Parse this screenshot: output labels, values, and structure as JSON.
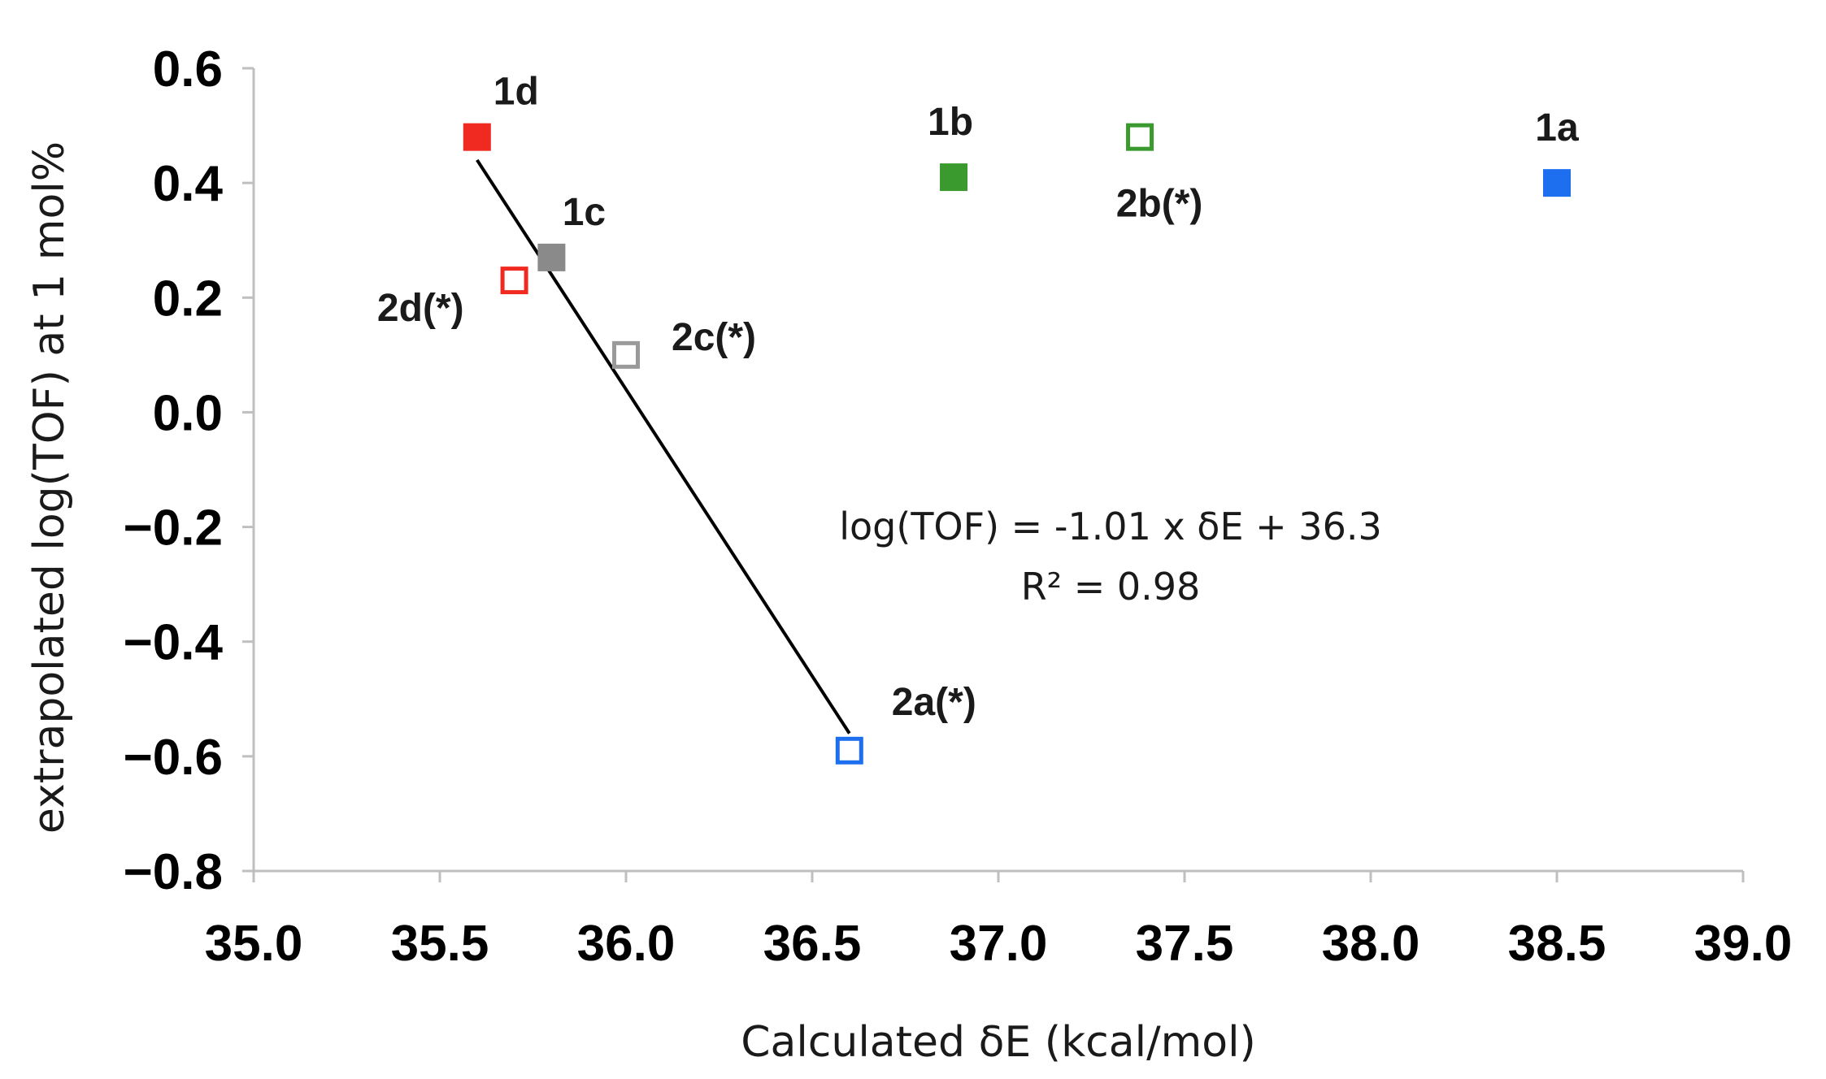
{
  "chart_data": {
    "type": "scatter",
    "xlabel": "Calculated δE (kcal/mol)",
    "ylabel": "extrapolated log(TOF) at 1 mol%",
    "xlim": [
      35.0,
      39.0
    ],
    "ylim": [
      -0.8,
      0.6
    ],
    "x_ticks": [
      "35.0",
      "35.5",
      "36.0",
      "36.5",
      "37.0",
      "37.5",
      "38.0",
      "38.5",
      "39.0"
    ],
    "y_ticks": [
      "0.6",
      "0.4",
      "0.2",
      "0.0",
      "−0.2",
      "−0.4",
      "−0.6",
      "−0.8"
    ],
    "grid": false,
    "points": [
      {
        "label": "1a",
        "x": 38.5,
        "y": 0.4,
        "color": "#1e6ff0",
        "filled": true
      },
      {
        "label": "1b",
        "x": 36.88,
        "y": 0.41,
        "color": "#3a9a2e",
        "filled": true
      },
      {
        "label": "1c",
        "x": 35.8,
        "y": 0.27,
        "color": "#8a8a8a",
        "filled": true
      },
      {
        "label": "1d",
        "x": 35.6,
        "y": 0.48,
        "color": "#f02a20",
        "filled": true
      },
      {
        "label": "2a(*)",
        "x": 36.6,
        "y": -0.59,
        "color": "#1e6ff0",
        "filled": false
      },
      {
        "label": "2b(*)",
        "x": 37.38,
        "y": 0.48,
        "color": "#3a9a2e",
        "filled": false
      },
      {
        "label": "2c(*)",
        "x": 36.0,
        "y": 0.1,
        "color": "#9a9a9a",
        "filled": false
      },
      {
        "label": "2d(*)",
        "x": 35.7,
        "y": 0.23,
        "color": "#f02a20",
        "filled": false
      }
    ],
    "trendline": {
      "x": [
        35.6,
        36.6
      ],
      "y": [
        0.44,
        -0.56
      ],
      "color": "#000000"
    },
    "annotation": {
      "equation": "log(TOF) = -1.01 x δE + 36.3",
      "r2": "R² = 0.98"
    }
  }
}
